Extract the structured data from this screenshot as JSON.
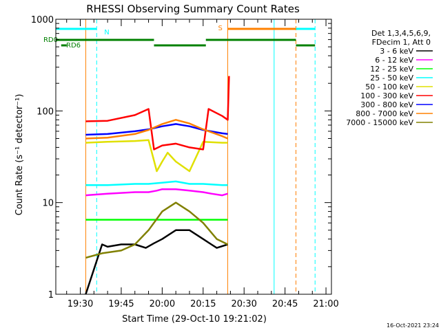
{
  "chart_data": {
    "type": "line",
    "title": "RHESSI Observing Summary Count Rates",
    "xlabel": "Start Time (29-Oct-10 19:21:02)",
    "ylabel": "Count Rate (s⁻¹ detector⁻¹)",
    "yscale": "log",
    "ylim": [
      1,
      1000
    ],
    "xlim": [
      "19:21:02",
      "21:02:00"
    ],
    "x_ticks": [
      "19:30",
      "19:45",
      "20:00",
      "20:15",
      "20:30",
      "20:45",
      "21:00"
    ],
    "y_ticks": [
      "1",
      "10",
      "100",
      "1000"
    ],
    "legend_header": [
      "Det 1,3,4,5,6,9,",
      "FDecim 1, Att 0"
    ],
    "legend_position": "right",
    "timestamp": "16-Oct-2021 23:24",
    "series": [
      {
        "name": "3 - 6 keV",
        "color": "#000000",
        "x": [
          "19:32",
          "19:38",
          "19:40",
          "19:45",
          "19:50",
          "19:54",
          "19:57",
          "20:00",
          "20:05",
          "20:10",
          "20:15",
          "20:18",
          "20:20",
          "20:24"
        ],
        "values": [
          1,
          3.5,
          3.3,
          3.5,
          3.5,
          3.2,
          3.6,
          4,
          5,
          5,
          4,
          3.5,
          3.2,
          3.5
        ]
      },
      {
        "name": "6 - 12 keV",
        "color": "#ff00ff",
        "x": [
          "19:32",
          "19:40",
          "19:50",
          "19:55",
          "19:58",
          "20:00",
          "20:05",
          "20:10",
          "20:15",
          "20:18",
          "20:22",
          "20:24"
        ],
        "values": [
          12,
          12.5,
          13,
          13,
          13.5,
          14,
          14,
          13.5,
          13,
          12.5,
          12,
          12.5
        ]
      },
      {
        "name": "12 - 25 keV",
        "color": "#00ff00",
        "x": [
          "19:32",
          "19:40",
          "19:50",
          "19:55",
          "20:00",
          "20:05",
          "20:10",
          "20:15",
          "20:22",
          "20:24"
        ],
        "values": [
          6.5,
          6.5,
          6.5,
          6.5,
          6.5,
          6.5,
          6.5,
          6.5,
          6.5,
          6.5
        ]
      },
      {
        "name": "25 - 50 keV",
        "color": "#00ffff",
        "x": [
          "19:32",
          "19:40",
          "19:50",
          "19:55",
          "20:00",
          "20:05",
          "20:10",
          "20:15",
          "20:22",
          "20:24"
        ],
        "values": [
          15.5,
          15.5,
          16,
          16,
          16.5,
          17,
          16,
          16,
          15.5,
          15.5
        ]
      },
      {
        "name": "50 - 100 keV",
        "color": "#e0e000",
        "x": [
          "19:32",
          "19:40",
          "19:50",
          "19:55",
          "19:58",
          "20:00",
          "20:02",
          "20:05",
          "20:10",
          "20:15",
          "20:22",
          "20:24"
        ],
        "values": [
          45,
          46,
          47,
          48,
          22,
          28,
          35,
          28,
          22,
          46,
          45,
          45
        ]
      },
      {
        "name": "100 - 300 keV",
        "color": "#ff0000",
        "x": [
          "19:32",
          "19:40",
          "19:50",
          "19:55",
          "19:57",
          "20:00",
          "20:05",
          "20:10",
          "20:15",
          "20:17",
          "20:22",
          "20:24",
          "20:24.5"
        ],
        "values": [
          77,
          78,
          90,
          105,
          38,
          42,
          44,
          40,
          38,
          105,
          88,
          80,
          240
        ]
      },
      {
        "name": "300 - 800 keV",
        "color": "#0000ff",
        "x": [
          "19:32",
          "19:40",
          "19:50",
          "19:55",
          "20:00",
          "20:05",
          "20:10",
          "20:15",
          "20:22",
          "20:24"
        ],
        "values": [
          55,
          56,
          60,
          63,
          68,
          72,
          68,
          62,
          57,
          56
        ]
      },
      {
        "name": "800 - 7000 keV",
        "color": "#ff8000",
        "x": [
          "19:32",
          "19:40",
          "19:50",
          "19:55",
          "20:00",
          "20:05",
          "20:10",
          "20:15",
          "20:22",
          "20:24"
        ],
        "values": [
          50,
          51,
          56,
          62,
          72,
          80,
          73,
          63,
          53,
          50
        ]
      },
      {
        "name": "7000 - 15000 keV",
        "color": "#808000",
        "x": [
          "19:32",
          "19:38",
          "19:45",
          "19:50",
          "19:55",
          "20:00",
          "20:05",
          "20:10",
          "20:15",
          "20:20",
          "20:24"
        ],
        "values": [
          2.5,
          2.8,
          3,
          3.5,
          5,
          8,
          10,
          8,
          6,
          4,
          3.5
        ]
      }
    ],
    "status_bars": [
      {
        "label": "N",
        "color": "#00ffff",
        "label_color": "#00ffff",
        "level": "top",
        "segments": [
          [
            "19:21:02",
            "19:36"
          ],
          [
            "20:41",
            "20:56"
          ]
        ]
      },
      {
        "label": "S",
        "color": "#ff8000",
        "label_color": "#ff8000",
        "level": "top",
        "segments": [
          [
            "20:24",
            "20:49"
          ]
        ]
      },
      {
        "label": "RD0",
        "color": "#008000",
        "label_color": "#008000",
        "level": "middle",
        "segments": [
          [
            "19:21:02",
            "19:57"
          ],
          [
            "20:16",
            "20:49"
          ]
        ]
      },
      {
        "label": "RD6",
        "color": "#008000",
        "label_color": "#008000",
        "level": "bottom",
        "segments": [
          [
            "19:23",
            "19:25"
          ],
          [
            "19:57",
            "20:16"
          ],
          [
            "20:49",
            "20:56"
          ]
        ]
      }
    ],
    "vertical_lines": [
      {
        "x": "19:21:02",
        "color": "#00ffff",
        "style": "solid"
      },
      {
        "x": "19:36",
        "color": "#00ffff",
        "style": "dashed"
      },
      {
        "x": "19:32",
        "color": "#ff8000",
        "style": "solid"
      },
      {
        "x": "20:24",
        "color": "#ff8000",
        "style": "solid"
      },
      {
        "x": "20:41",
        "color": "#00ffff",
        "style": "solid"
      },
      {
        "x": "20:49",
        "color": "#ff8000",
        "style": "dashed"
      },
      {
        "x": "20:56",
        "color": "#00ffff",
        "style": "dashed"
      }
    ]
  }
}
